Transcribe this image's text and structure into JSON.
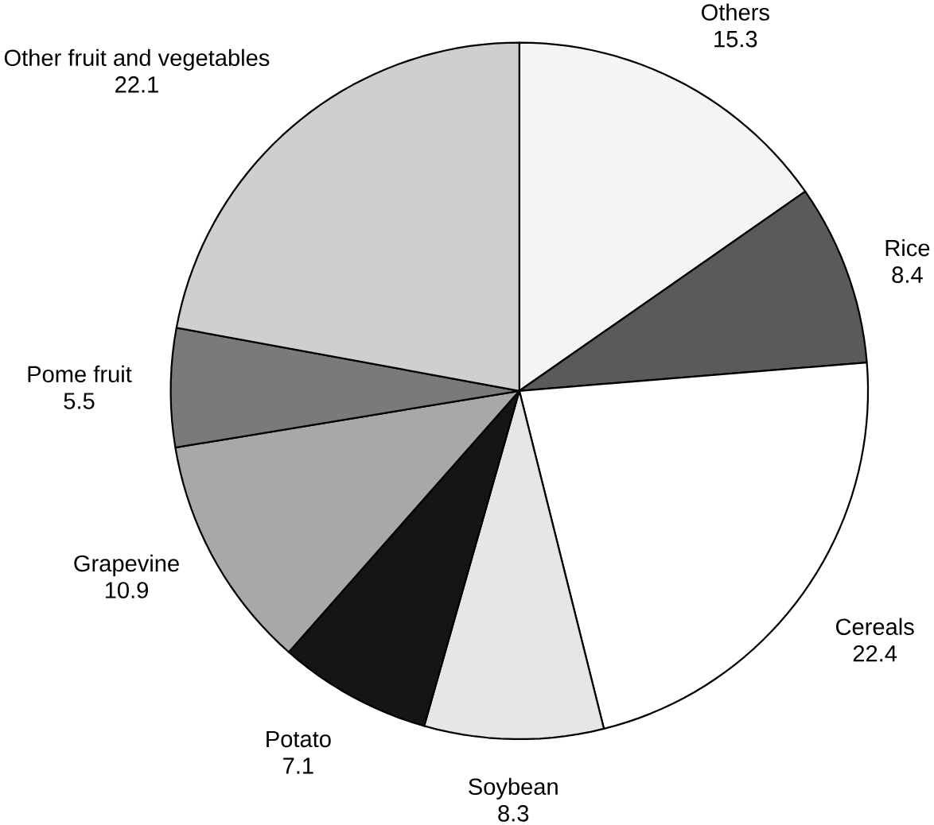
{
  "chart_data": {
    "type": "pie",
    "categories": [
      "Others",
      "Rice",
      "Cereals",
      "Soybean",
      "Potato",
      "Grapevine",
      "Pome fruit",
      "Other fruit and vegetables"
    ],
    "values": [
      15.3,
      8.4,
      22.4,
      8.3,
      7.1,
      10.9,
      5.5,
      22.1
    ],
    "colors": [
      "#f4f4f4",
      "#5a5a5a",
      "#ffffff",
      "#e6e6e6",
      "#151515",
      "#a8a8a8",
      "#7a7a7a",
      "#cfcfcf"
    ],
    "data_labels": true
  }
}
